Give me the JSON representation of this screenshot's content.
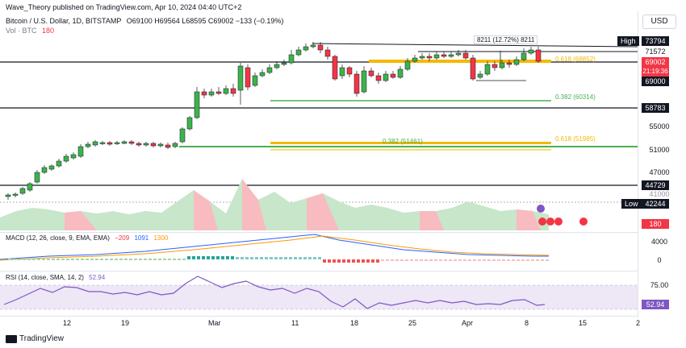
{
  "header": {
    "publisher": "Wave_Theory published on TradingView.com, Apr 10, 2024 04:40 UTC+2",
    "symbol": "Bitcoin / U.S. Dollar, 1D, BITSTAMP",
    "ohlc": "O69100 H69564 L68595 C69002 −133 (−0.19%)",
    "volume": "Vol · BTC",
    "volume_value": "180",
    "currency": "USD"
  },
  "price_axis": {
    "high_label": "High",
    "high_value": "73794",
    "v71572": "71572",
    "current": "69002",
    "countdown": "21:19:36",
    "v69000": "69000",
    "v58783": "58783",
    "v55000": "55000",
    "v51000": "51000",
    "v47000": "47000",
    "v44729": "44729",
    "low_label": "Low",
    "low_value": "42244",
    "v41000": "41000",
    "vol_value": "180"
  },
  "annotations": {
    "range": "8211 (12.72%) 8211",
    "fib_618_top": "0.618 (68852)",
    "fib_382_mid": "0.382 (60314)",
    "fib_382_low": "0.382 (51461)",
    "fib_618_low": "0.618 (51985)"
  },
  "macd": {
    "label": "MACD (12, 26, close, 9, EMA, EMA)",
    "v1": "−209",
    "v2": "1091",
    "v3": "1300",
    "axis_4000": "4000",
    "axis_0": "0"
  },
  "rsi": {
    "label": "RSI (14, close, SMA, 14, 2)",
    "value": "52.94",
    "axis_75": "75.00"
  },
  "x_axis": [
    "12",
    "19",
    "Mar",
    "11",
    "18",
    "25",
    "Apr",
    "8",
    "15",
    "2"
  ],
  "brand": "TradingView",
  "colors": {
    "up": "#089981",
    "down": "#f23645",
    "upFill": "#3cb44b",
    "gold": "#f5b800",
    "fibGreen": "#4caf50",
    "macd": "#2962ff",
    "signal": "#ff9800",
    "rsi": "#7e57c2"
  }
}
